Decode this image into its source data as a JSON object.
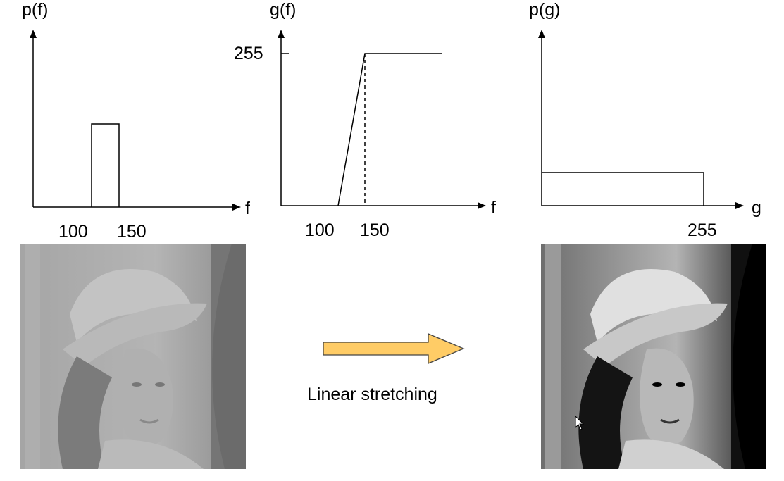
{
  "figure": {
    "histogram_input": {
      "y_label": "p(f)",
      "x_label": "f",
      "tick_labels": [
        "100",
        "150"
      ]
    },
    "transfer_function": {
      "y_label": "g(f)",
      "x_label": "f",
      "y_tick_label": "255",
      "tick_labels": [
        "100",
        "150"
      ]
    },
    "histogram_output": {
      "y_label": "p(g)",
      "x_label": "g",
      "tick_label": "255"
    },
    "operation_label": "Linear stretching",
    "colors": {
      "arrow_fill": "#FFCC66",
      "arrow_stroke": "#444444",
      "line": "#000000"
    },
    "icons": [
      "arrow-right-icon",
      "mouse-cursor-icon"
    ]
  }
}
